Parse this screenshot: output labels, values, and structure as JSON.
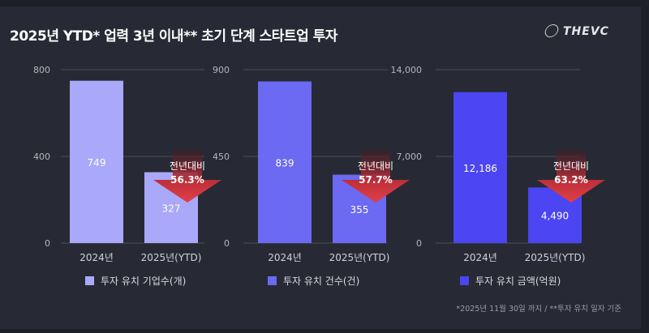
{
  "title": "2025년 YTD* 업력 3년 이내** 초기 단계 스타트업 투자",
  "logo": "THEVC",
  "footnote": "*2025년 11월 30일 까지 /  **투자 유치 일자 기준",
  "chart_data": [
    {
      "type": "bar",
      "categories": [
        "2024년",
        "2025년(YTD)"
      ],
      "values": [
        749,
        327
      ],
      "ylim": [
        0,
        800
      ],
      "yticks": [
        "0",
        "400",
        "800"
      ],
      "tickvals": [
        0,
        400,
        800
      ],
      "legend": "투자 유치 기업수(개)",
      "color": "#aaa8f8",
      "value_labels": [
        "749",
        "327"
      ],
      "annotation": {
        "label": "전년대비",
        "value": "56.3%"
      },
      "grid": true,
      "legend_placement": "bottom"
    },
    {
      "type": "bar",
      "categories": [
        "2024년",
        "2025년(YTD)"
      ],
      "values": [
        839,
        355
      ],
      "ylim": [
        0,
        900
      ],
      "yticks": [
        "0",
        "450",
        "900"
      ],
      "tickvals": [
        0,
        450,
        900
      ],
      "legend": "투자 유치 건수(건)",
      "color": "#6c69f2",
      "value_labels": [
        "839",
        "355"
      ],
      "annotation": {
        "label": "전년대비",
        "value": "57.7%"
      },
      "grid": true,
      "legend_placement": "bottom"
    },
    {
      "type": "bar",
      "categories": [
        "2024년",
        "2025년(YTD)"
      ],
      "values": [
        12186,
        4490
      ],
      "ylim": [
        0,
        14000
      ],
      "yticks": [
        "0",
        "7,000",
        "14,000"
      ],
      "tickvals": [
        0,
        7000,
        14000
      ],
      "legend": "투자 유치 금액(억원)",
      "color": "#4b45f2",
      "value_labels": [
        "12,186",
        "4,490"
      ],
      "annotation": {
        "label": "전년대비",
        "value": "63.2%"
      },
      "grid": true,
      "legend_placement": "bottom"
    }
  ]
}
